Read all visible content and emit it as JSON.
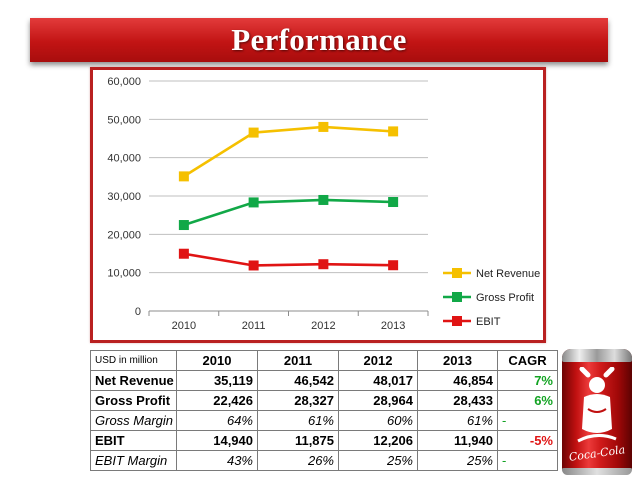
{
  "slide": {
    "title": "Performance"
  },
  "chart_data": {
    "type": "line",
    "categories": [
      "2010",
      "2011",
      "2012",
      "2013"
    ],
    "series": [
      {
        "name": "Net Revenue",
        "color": "#f5c000",
        "values": [
          35119,
          46542,
          48017,
          46854
        ]
      },
      {
        "name": "Gross Profit",
        "color": "#11a847",
        "values": [
          22426,
          28327,
          28964,
          28433
        ]
      },
      {
        "name": "EBIT",
        "color": "#e01414",
        "values": [
          14940,
          11875,
          12206,
          11940
        ]
      }
    ],
    "ylim": [
      0,
      60000
    ],
    "yticks": [
      0,
      10000,
      20000,
      30000,
      40000,
      50000,
      60000
    ],
    "ytick_labels": [
      "0",
      "10,000",
      "20,000",
      "30,000",
      "40,000",
      "50,000",
      "60,000"
    ],
    "grid": true,
    "legend_position": "right-bottom",
    "marker": "square",
    "title": "",
    "xlabel": "",
    "ylabel": ""
  },
  "table": {
    "unit_label": "USD in million",
    "columns": [
      "2010",
      "2011",
      "2012",
      "2013",
      "CAGR"
    ],
    "rows": [
      {
        "label": "Net Revenue",
        "values": [
          "35,119",
          "46,542",
          "48,017",
          "46,854"
        ],
        "cagr": "7%"
      },
      {
        "label": "Gross Profit",
        "values": [
          "22,426",
          "28,327",
          "28,964",
          "28,433"
        ],
        "cagr": "6%"
      },
      {
        "label": "Gross Margin",
        "values": [
          "64%",
          "61%",
          "60%",
          "61%"
        ],
        "cagr": "-"
      },
      {
        "label": "EBIT",
        "values": [
          "14,940",
          "11,875",
          "12,206",
          "11,940"
        ],
        "cagr": "-5%"
      },
      {
        "label": "EBIT Margin",
        "values": [
          "43%",
          "26%",
          "25%",
          "25%"
        ],
        "cagr": "-"
      }
    ]
  },
  "decoration": {
    "can_brand": "Coca-Cola",
    "can_color": "#c8102e"
  }
}
